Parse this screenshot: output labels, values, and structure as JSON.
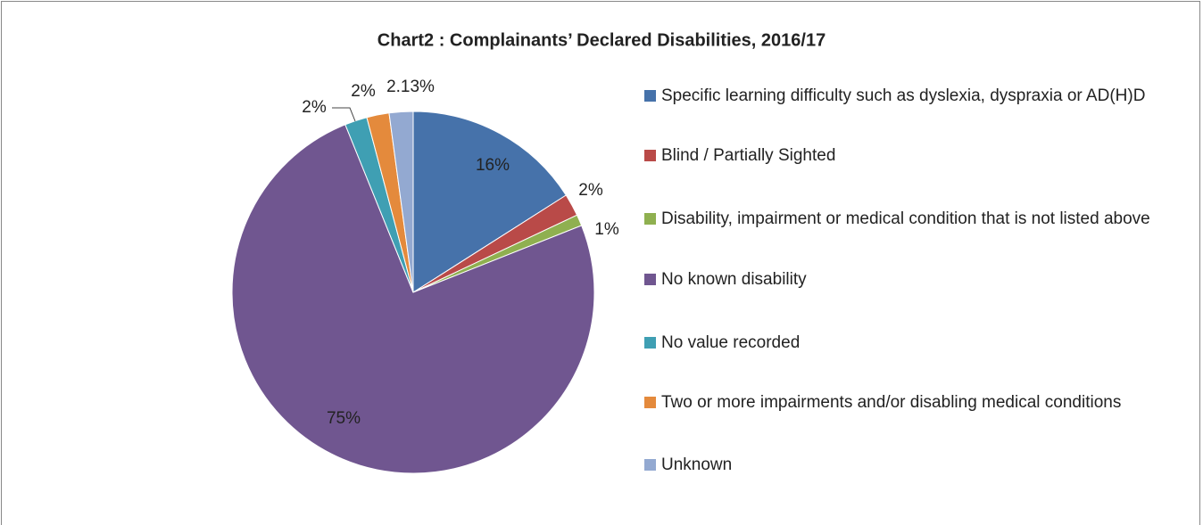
{
  "chart_data": {
    "type": "pie",
    "title": "Chart2 : Complainants’ Declared Disabilities, 2016/17",
    "categories": [
      "Specific learning difficulty such as dyslexia, dyspraxia or AD(H)D",
      "Blind / Partially Sighted",
      "Disability, impairment or medical condition that is not listed above",
      "No known disability",
      "No value recorded",
      "Two or more impairments and/or disabling medical conditions",
      "Unknown"
    ],
    "values": [
      16,
      2,
      1,
      75,
      2,
      2,
      2.13
    ],
    "value_labels": [
      "16%",
      "2%",
      "1%",
      "75%",
      "2%",
      "2%",
      "2.13%"
    ],
    "colors": [
      "#4672aa",
      "#b94a48",
      "#8fb050",
      "#705690",
      "#3f9fb3",
      "#e48a3c",
      "#93a9d1"
    ],
    "legend": "right"
  }
}
